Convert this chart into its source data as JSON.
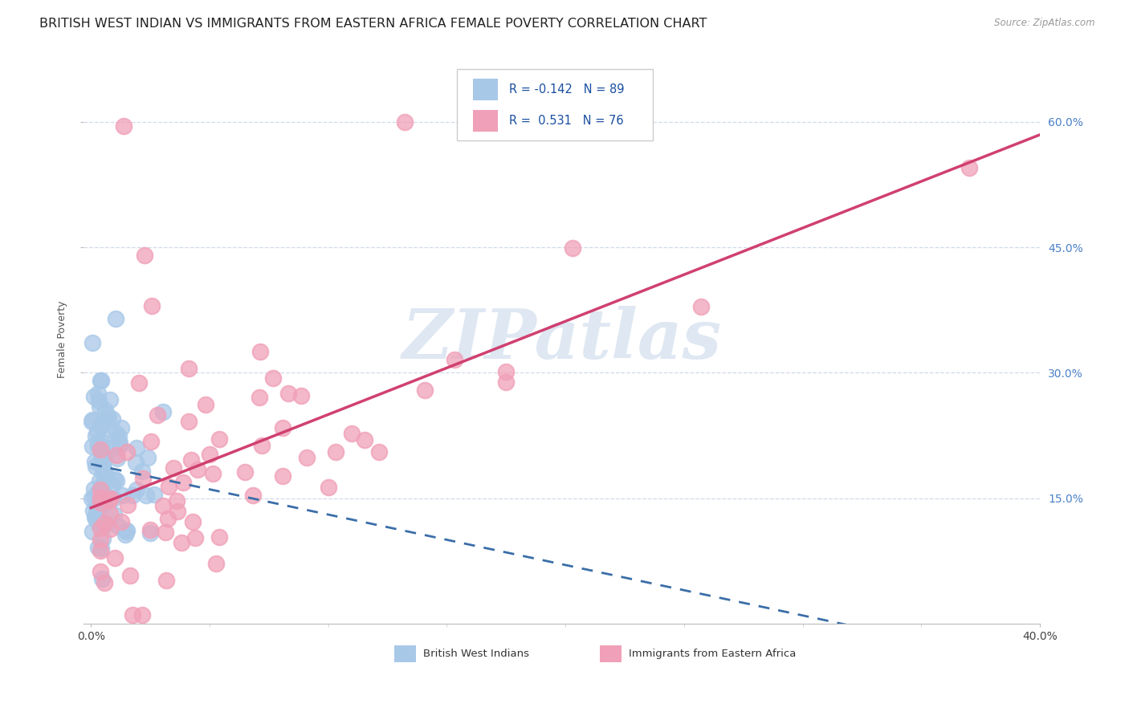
{
  "title": "BRITISH WEST INDIAN VS IMMIGRANTS FROM EASTERN AFRICA FEMALE POVERTY CORRELATION CHART",
  "source": "Source: ZipAtlas.com",
  "ylabel": "Female Poverty",
  "ytick_labels": [
    "15.0%",
    "30.0%",
    "45.0%",
    "60.0%"
  ],
  "ytick_values": [
    0.15,
    0.3,
    0.45,
    0.6
  ],
  "xmin": 0.0,
  "xmax": 0.4,
  "ymin": 0.0,
  "ymax": 0.68,
  "label1": "British West Indians",
  "label2": "Immigrants from Eastern Africa",
  "color1": "#a8c8e8",
  "color2": "#f0a0b8",
  "line1_color": "#3a6ea8",
  "line2_color": "#d04070",
  "watermark": "ZIPatlas",
  "watermark_color": "#c8d8ea",
  "background_color": "#ffffff",
  "grid_color": "#d0dae8",
  "title_fontsize": 11.5,
  "axis_label_fontsize": 9,
  "tick_fontsize": 10,
  "legend_color": "#1a4fa0"
}
